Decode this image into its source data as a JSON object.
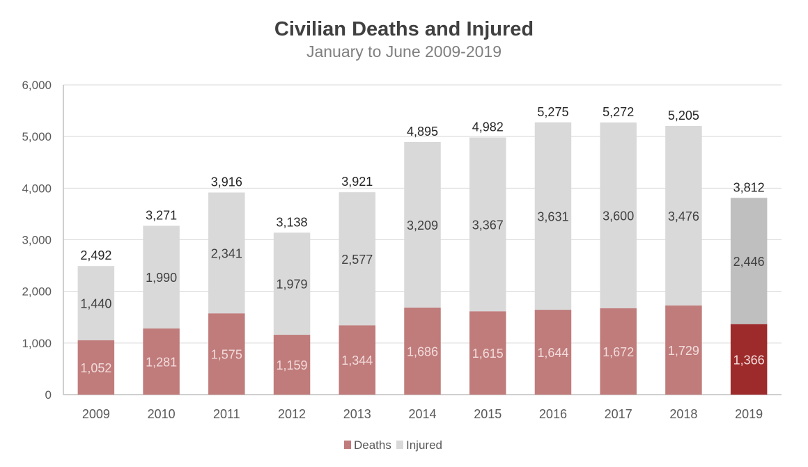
{
  "chart_data": {
    "type": "bar",
    "stacked": true,
    "title": "Civilian Deaths and Injured",
    "subtitle": "January to June 2009-2019",
    "xlabel": "",
    "ylabel": "",
    "ylim": [
      0,
      6000
    ],
    "yticks": [
      0,
      1000,
      2000,
      3000,
      4000,
      5000,
      6000
    ],
    "ytick_labels": [
      "0",
      "1,000",
      "2,000",
      "3,000",
      "4,000",
      "5,000",
      "6,000"
    ],
    "grid": true,
    "categories": [
      "2009",
      "2010",
      "2011",
      "2012",
      "2013",
      "2014",
      "2015",
      "2016",
      "2017",
      "2018",
      "2019"
    ],
    "series": [
      {
        "name": "Deaths",
        "color": "#c07b7b",
        "highlight_color": "#9e2b2b",
        "values": [
          1052,
          1281,
          1575,
          1159,
          1344,
          1686,
          1615,
          1644,
          1672,
          1729,
          1366
        ],
        "labels": [
          "1,052",
          "1,281",
          "1,575",
          "1,159",
          "1,344",
          "1,686",
          "1,615",
          "1,644",
          "1,672",
          "1,729",
          "1,366"
        ]
      },
      {
        "name": "Injured",
        "color": "#d9d9d9",
        "highlight_color": "#bfbfbf",
        "values": [
          1440,
          1990,
          2341,
          1979,
          2577,
          3209,
          3367,
          3631,
          3600,
          3476,
          2446
        ],
        "labels": [
          "1,440",
          "1,990",
          "2,341",
          "1,979",
          "2,577",
          "3,209",
          "3,367",
          "3,631",
          "3,600",
          "3,476",
          "2,446"
        ]
      }
    ],
    "totals": [
      2492,
      3271,
      3916,
      3138,
      3921,
      4895,
      4982,
      5275,
      5272,
      5205,
      3812
    ],
    "total_labels": [
      "2,492",
      "3,271",
      "3,916",
      "3,138",
      "3,921",
      "4,895",
      "4,982",
      "5,275",
      "5,272",
      "5,205",
      "3,812"
    ],
    "highlighted_category": "2019",
    "legend": {
      "position": "bottom",
      "entries": [
        "Deaths",
        "Injured"
      ]
    }
  }
}
